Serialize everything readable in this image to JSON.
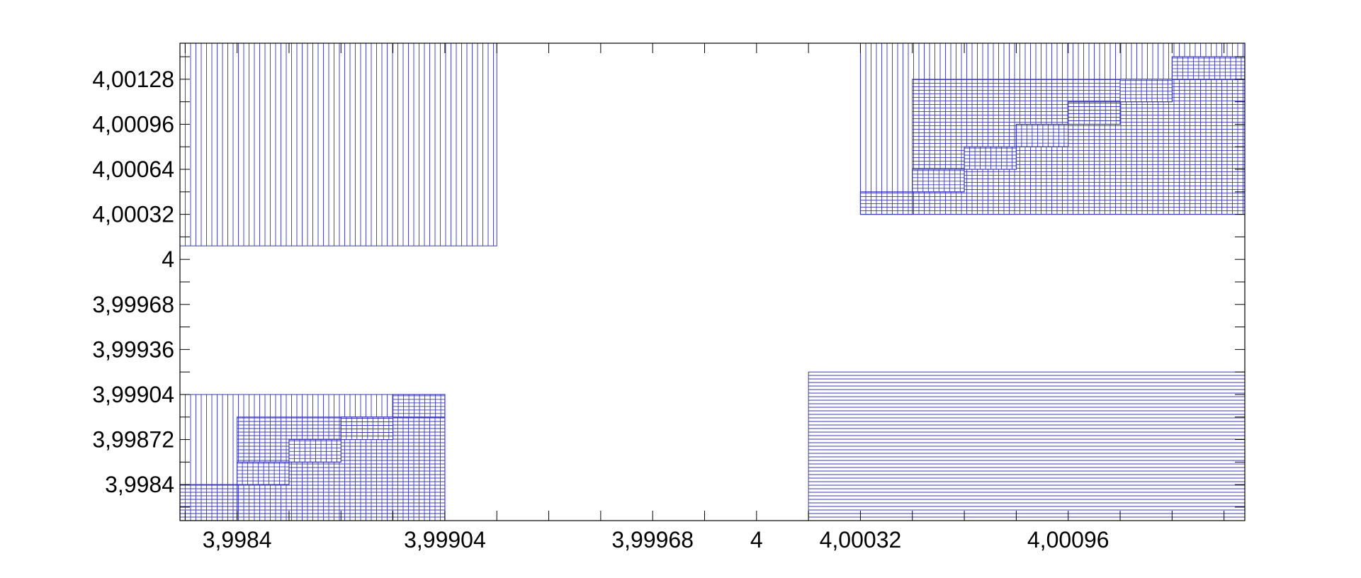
{
  "chart_data": {
    "type": "area",
    "title": "",
    "xlabel": "",
    "ylabel": "",
    "xlim": [
      3.998224,
      4.001504
    ],
    "ylim": [
      3.998144,
      4.001536
    ],
    "grid": false,
    "x_ticks": [
      {
        "value": 3.9984,
        "label": "3,9984"
      },
      {
        "value": 3.99904,
        "label": "3,99904"
      },
      {
        "value": 3.99968,
        "label": "3,99968"
      },
      {
        "value": 4.0,
        "label": "4"
      },
      {
        "value": 4.00032,
        "label": "4,00032"
      },
      {
        "value": 4.00096,
        "label": "4,00096"
      }
    ],
    "y_ticks": [
      {
        "value": 3.9984,
        "label": "3,9984"
      },
      {
        "value": 3.99872,
        "label": "3,99872"
      },
      {
        "value": 3.99904,
        "label": "3,99904"
      },
      {
        "value": 3.99936,
        "label": "3,99936"
      },
      {
        "value": 3.99968,
        "label": "3,99968"
      },
      {
        "value": 4.0,
        "label": "4"
      },
      {
        "value": 4.00032,
        "label": "4,00032"
      },
      {
        "value": 4.00064,
        "label": "4,00064"
      },
      {
        "value": 4.00096,
        "label": "4,00096"
      },
      {
        "value": 4.00128,
        "label": "4,00128"
      }
    ],
    "minor_tick_step": 0.00016,
    "regions": [
      {
        "name": "",
        "x": [
          3.998224,
          3.9992
        ],
        "y": [
          4.000096,
          4.001536
        ],
        "hatch": "vertical"
      },
      {
        "name": "",
        "x": [
          3.998224,
          3.99904
        ],
        "y": [
          3.998144,
          3.99904
        ],
        "hatch": "vertical"
      },
      {
        "name": "",
        "x": [
          3.9984,
          3.99904
        ],
        "y": [
          3.998144,
          3.99888
        ],
        "hatch": "horizontal"
      },
      {
        "name": "",
        "x": [
          4.00016,
          4.001504
        ],
        "y": [
          3.998144,
          3.9992
        ],
        "hatch": "horizontal"
      },
      {
        "name": "",
        "x": [
          4.00032,
          4.001504
        ],
        "y": [
          4.00032,
          4.001536
        ],
        "hatch": "vertical"
      },
      {
        "name": "",
        "x": [
          4.00048,
          4.001504
        ],
        "y": [
          4.00032,
          4.00128
        ],
        "hatch": "horizontal"
      }
    ],
    "crosshatch_cells": [
      {
        "x": [
          3.998224,
          3.9984
        ],
        "y": [
          3.998144,
          3.9984
        ]
      },
      {
        "x": [
          3.9984,
          3.99856
        ],
        "y": [
          3.9984,
          3.99856
        ]
      },
      {
        "x": [
          3.99856,
          3.99872
        ],
        "y": [
          3.99856,
          3.99872
        ]
      },
      {
        "x": [
          3.99872,
          3.99888
        ],
        "y": [
          3.99872,
          3.99888
        ]
      },
      {
        "x": [
          3.99888,
          3.99904
        ],
        "y": [
          3.99888,
          3.99904
        ]
      },
      {
        "x": [
          4.00032,
          4.00048
        ],
        "y": [
          4.00032,
          4.00048
        ]
      },
      {
        "x": [
          4.00048,
          4.00064
        ],
        "y": [
          4.00048,
          4.00064
        ]
      },
      {
        "x": [
          4.00064,
          4.0008
        ],
        "y": [
          4.00064,
          4.0008
        ]
      },
      {
        "x": [
          4.0008,
          4.00096
        ],
        "y": [
          4.0008,
          4.00096
        ]
      },
      {
        "x": [
          4.00096,
          4.00112
        ],
        "y": [
          4.00096,
          4.00112
        ]
      },
      {
        "x": [
          4.00112,
          4.00128
        ],
        "y": [
          4.00112,
          4.00128
        ]
      },
      {
        "x": [
          4.00128,
          4.001504
        ],
        "y": [
          4.00128,
          4.00144
        ]
      }
    ],
    "colors": {
      "hatch": "#3a3ab8",
      "axis": "#000000",
      "background": "#ffffff"
    }
  }
}
